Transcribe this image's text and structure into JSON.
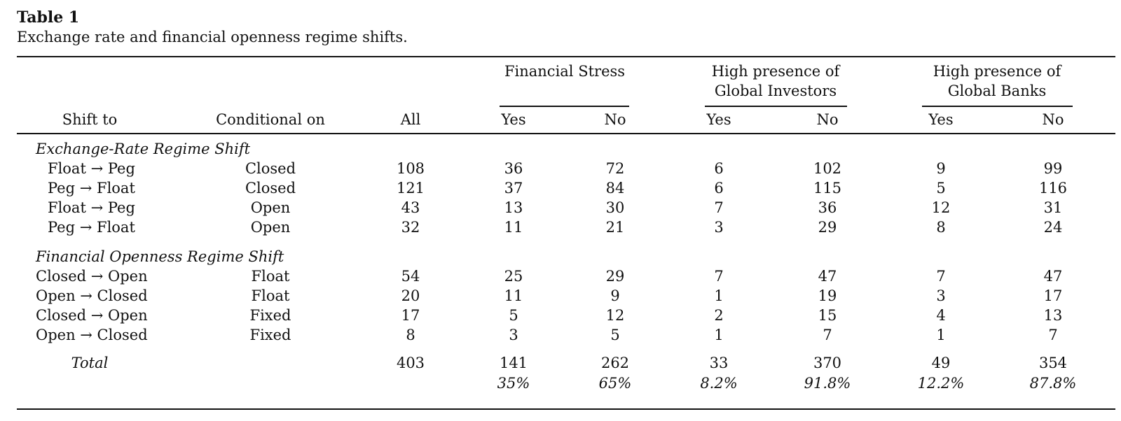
{
  "table": {
    "label": "Table 1",
    "caption": "Exchange rate and financial openness regime shifts.",
    "headers": {
      "shift_to": "Shift to",
      "conditional_on": "Conditional on",
      "all": "All",
      "groups": [
        {
          "line1": "Financial Stress",
          "line2": "",
          "yes": "Yes",
          "no": "No"
        },
        {
          "line1": "High presence of",
          "line2": "Global Investors",
          "yes": "Yes",
          "no": "No"
        },
        {
          "line1": "High presence of",
          "line2": "Global Banks",
          "yes": "Yes",
          "no": "No"
        }
      ]
    },
    "sections": [
      {
        "title": "Exchange-Rate Regime Shift",
        "rows": [
          [
            "Float → Peg",
            "Closed",
            "108",
            "36",
            "72",
            "6",
            "102",
            "9",
            "99"
          ],
          [
            "Peg → Float",
            "Closed",
            "121",
            "37",
            "84",
            "6",
            "115",
            "5",
            "116"
          ],
          [
            "Float → Peg",
            "Open",
            "43",
            "13",
            "30",
            "7",
            "36",
            "12",
            "31"
          ],
          [
            "Peg → Float",
            "Open",
            "32",
            "11",
            "21",
            "3",
            "29",
            "8",
            "24"
          ]
        ]
      },
      {
        "title": "Financial Openness Regime Shift",
        "rows": [
          [
            "Closed → Open",
            "Float",
            "54",
            "25",
            "29",
            "7",
            "47",
            "7",
            "47"
          ],
          [
            "Open → Closed",
            "Float",
            "20",
            "11",
            "9",
            "1",
            "19",
            "3",
            "17"
          ],
          [
            "Closed → Open",
            "Fixed",
            "17",
            "5",
            "12",
            "2",
            "15",
            "4",
            "13"
          ],
          [
            "Open → Closed",
            "Fixed",
            "8",
            "3",
            "5",
            "1",
            "7",
            "1",
            "7"
          ]
        ]
      }
    ],
    "total": {
      "label": "Total",
      "values": [
        "403",
        "141",
        "262",
        "33",
        "370",
        "49",
        "354"
      ],
      "percents": [
        "35%",
        "65%",
        "8.2%",
        "91.8%",
        "12.2%",
        "87.8%"
      ]
    }
  }
}
